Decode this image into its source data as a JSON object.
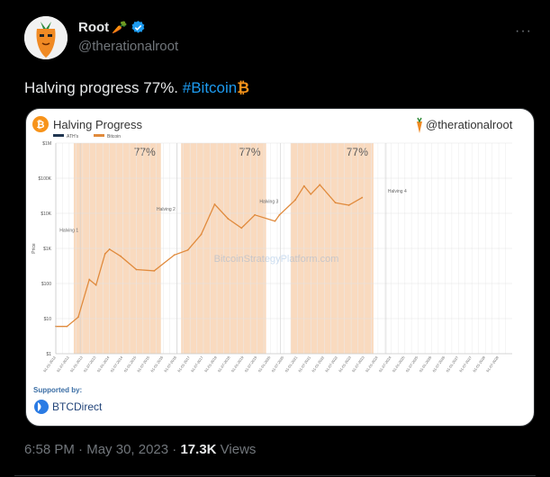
{
  "tweet": {
    "author_name": "Root",
    "author_emoji": "🥕",
    "handle": "@therationalroot",
    "text_main": "Halving progress 77%.",
    "hashtag": "#Bitcoin",
    "hashtag_symbol": "₿",
    "time": "6:58 PM",
    "date": "May 30, 2023",
    "views_count": "17.3K",
    "views_label": "Views",
    "more": "···"
  },
  "card": {
    "title": "Halving Progress",
    "watermark_handle": "@therationalroot",
    "watermark_site": "BitcoinStrategyPlatform.com",
    "supported_by": "Supported by:",
    "sponsor": "BTCDirect",
    "colors": {
      "accent": "#f7931a",
      "band": "#f8d3b4",
      "price": "#e08a3c",
      "ath": "#1f3550"
    }
  },
  "chart_data": {
    "type": "line",
    "title": "Halving Progress",
    "legend": [
      "ATH's",
      "Bitcoin"
    ],
    "legend_placement": "top-left",
    "yscale": "log",
    "ylabel": "Price",
    "y_ticks": [
      "$1M",
      "$100K",
      "$10K",
      "$1K",
      "$100",
      "$10",
      "$1"
    ],
    "ylim": [
      1,
      1000000
    ],
    "x_range": [
      "2012-01-01",
      "2028-12-31"
    ],
    "grid": true,
    "bands": [
      {
        "start": "2012-09-01",
        "end": "2015-12-01",
        "label": "77%"
      },
      {
        "start": "2016-09-01",
        "end": "2019-11-01",
        "label": "77%"
      },
      {
        "start": "2020-10-01",
        "end": "2023-11-01",
        "label": "77%"
      }
    ],
    "halvings": [
      {
        "label": "Halving 1",
        "date": "2012-11-28"
      },
      {
        "label": "Halving 2",
        "date": "2016-07-09"
      },
      {
        "label": "Halving 3",
        "date": "2020-05-11"
      },
      {
        "label": "Halving 4",
        "date": "2024-04-20"
      }
    ],
    "series": [
      {
        "name": "Bitcoin",
        "points": [
          [
            "2012-01-01",
            6
          ],
          [
            "2012-06-01",
            6
          ],
          [
            "2012-11-01",
            11
          ],
          [
            "2013-04-01",
            130
          ],
          [
            "2013-07-01",
            90
          ],
          [
            "2013-11-01",
            700
          ],
          [
            "2014-01-01",
            950
          ],
          [
            "2014-06-01",
            600
          ],
          [
            "2015-01-01",
            250
          ],
          [
            "2015-09-01",
            230
          ],
          [
            "2016-06-01",
            650
          ],
          [
            "2016-12-01",
            900
          ],
          [
            "2017-06-01",
            2500
          ],
          [
            "2017-12-01",
            18000
          ],
          [
            "2018-06-01",
            7000
          ],
          [
            "2018-12-01",
            3800
          ],
          [
            "2019-06-01",
            9000
          ],
          [
            "2020-03-01",
            6000
          ],
          [
            "2020-05-01",
            9000
          ],
          [
            "2020-12-01",
            24000
          ],
          [
            "2021-04-01",
            60000
          ],
          [
            "2021-07-01",
            35000
          ],
          [
            "2021-11-01",
            65000
          ],
          [
            "2022-06-01",
            20000
          ],
          [
            "2022-12-01",
            17000
          ],
          [
            "2023-05-30",
            28000
          ]
        ]
      }
    ]
  }
}
